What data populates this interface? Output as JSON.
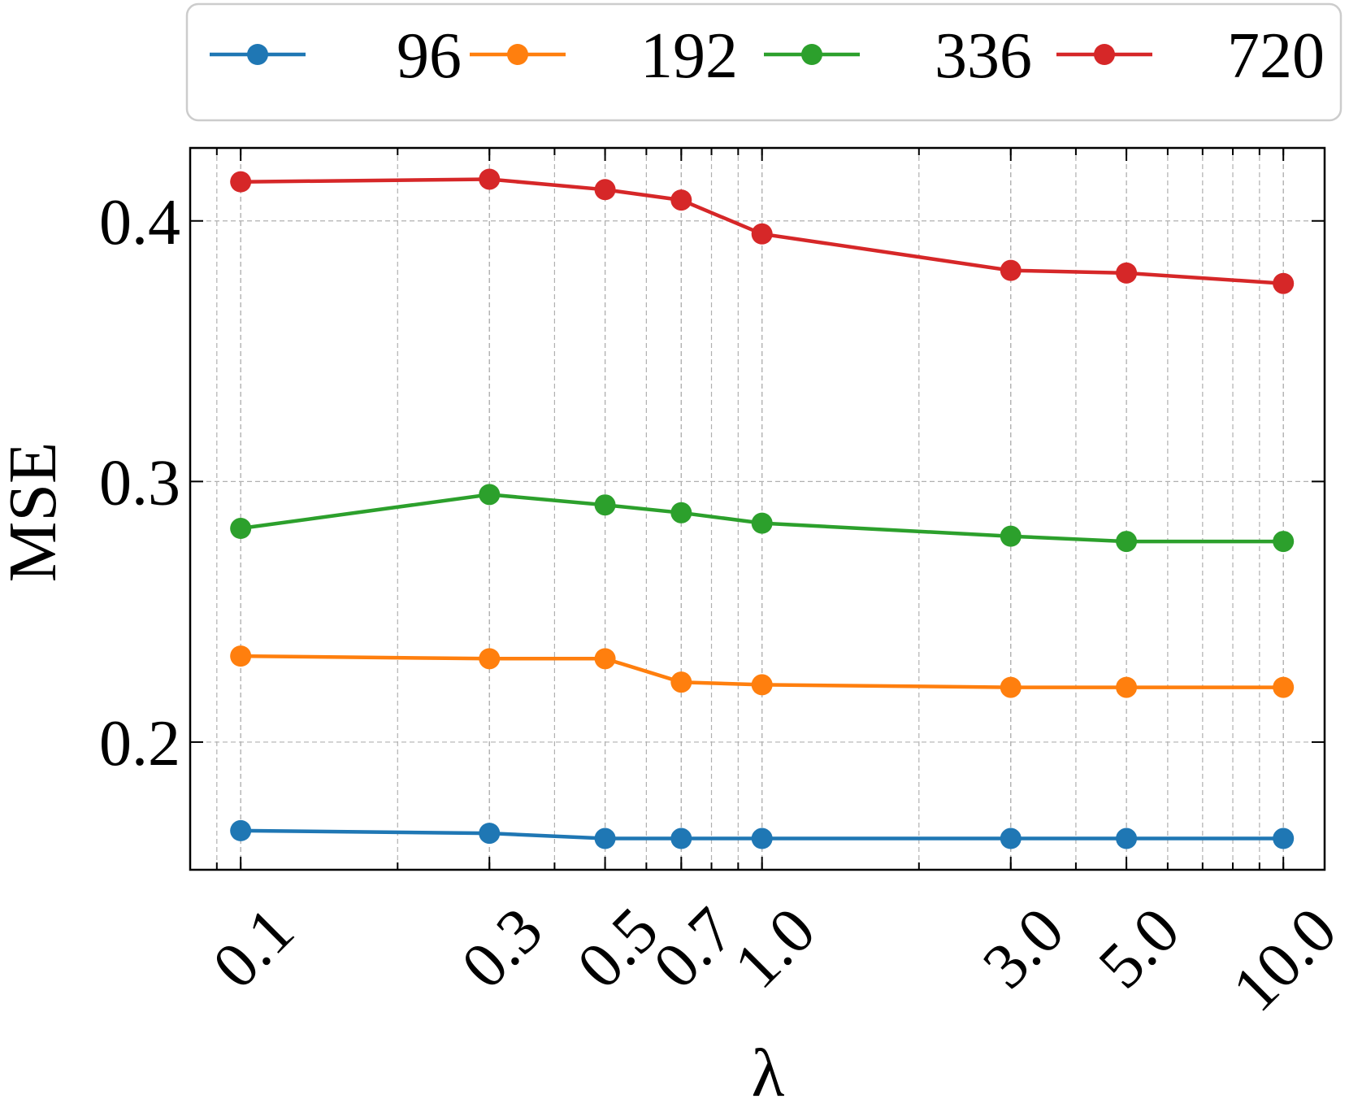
{
  "chart_data": {
    "type": "line",
    "xscale": "log",
    "xlabel": "λ",
    "ylabel": "MSE",
    "x": [
      0.1,
      0.3,
      0.5,
      0.7,
      1.0,
      3.0,
      5.0,
      10.0
    ],
    "x_tick_labels": [
      "0.1",
      "0.3",
      "0.5",
      "0.7",
      "1.0",
      "3.0",
      "5.0",
      "10.0"
    ],
    "y_ticks": [
      0.2,
      0.3,
      0.4
    ],
    "y_tick_labels": [
      "0.2",
      "0.3",
      "0.4"
    ],
    "xlim": [
      0.08,
      12
    ],
    "ylim": [
      0.151,
      0.428
    ],
    "grid": true,
    "legend_position": "top",
    "series": [
      {
        "name": "96",
        "color": "#1f77b4",
        "values": [
          0.166,
          0.165,
          0.163,
          0.163,
          0.163,
          0.163,
          0.163,
          0.163
        ]
      },
      {
        "name": "192",
        "color": "#ff7f0e",
        "values": [
          0.233,
          0.232,
          0.232,
          0.223,
          0.222,
          0.221,
          0.221,
          0.221
        ]
      },
      {
        "name": "336",
        "color": "#2ca02c",
        "values": [
          0.282,
          0.295,
          0.291,
          0.288,
          0.284,
          0.279,
          0.277,
          0.277
        ]
      },
      {
        "name": "720",
        "color": "#d62728",
        "values": [
          0.415,
          0.416,
          0.412,
          0.408,
          0.395,
          0.381,
          0.38,
          0.376
        ]
      }
    ]
  }
}
